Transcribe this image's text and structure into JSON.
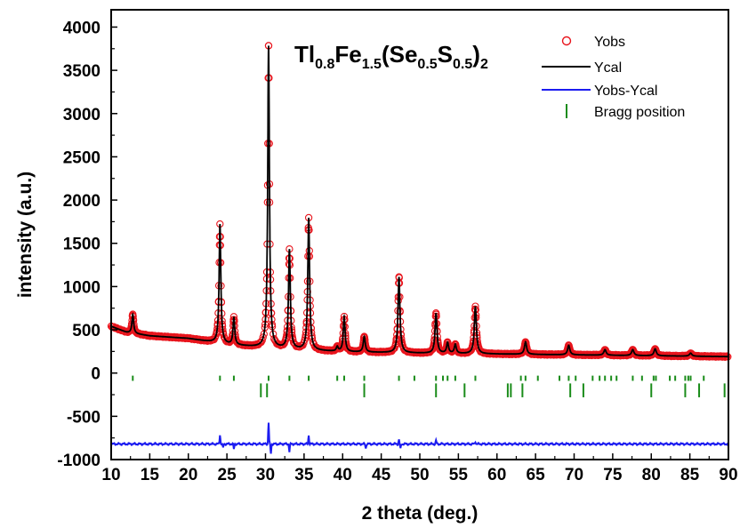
{
  "chart_data": {
    "type": "line",
    "title_parts": [
      "Tl",
      "0.8",
      "Fe",
      "1.5",
      "(Se",
      "0.5",
      "S",
      "0.5",
      ")",
      "2"
    ],
    "xlabel": "2 theta (deg.)",
    "ylabel": "intensity (a.u.)",
    "xlim": [
      10,
      90
    ],
    "ylim": [
      -1000,
      4200
    ],
    "xticks": [
      10,
      15,
      20,
      25,
      30,
      35,
      40,
      45,
      50,
      55,
      60,
      65,
      70,
      75,
      80,
      85,
      90
    ],
    "yticks": [
      -1000,
      -500,
      0,
      500,
      1000,
      1500,
      2000,
      2500,
      3000,
      3500,
      4000
    ],
    "grid": false,
    "legend_position": "top-right",
    "colors": {
      "yobs": "#e8141c",
      "ycal": "#000000",
      "diff": "#1c1cf0",
      "bragg": "#1a8c1a"
    },
    "legend": [
      {
        "label": "Yobs",
        "marker": "circle",
        "color": "#e8141c"
      },
      {
        "label": "Ycal",
        "marker": "line",
        "color": "#000000"
      },
      {
        "label": "Yobs-Ycal",
        "marker": "line",
        "color": "#1c1cf0"
      },
      {
        "label": "Bragg position",
        "marker": "tick",
        "color": "#1a8c1a"
      }
    ],
    "background_points": [
      [
        10,
        540
      ],
      [
        12,
        470
      ],
      [
        15,
        430
      ],
      [
        20,
        400
      ],
      [
        25,
        330
      ],
      [
        30,
        290
      ],
      [
        35,
        265
      ],
      [
        40,
        245
      ],
      [
        50,
        230
      ],
      [
        60,
        220
      ],
      [
        70,
        210
      ],
      [
        80,
        200
      ],
      [
        90,
        190
      ]
    ],
    "peaks": [
      {
        "x": 12.8,
        "height": 680,
        "width": 0.13
      },
      {
        "x": 24.1,
        "height": 1720,
        "width": 0.13
      },
      {
        "x": 25.9,
        "height": 640,
        "width": 0.13
      },
      {
        "x": 30.4,
        "height": 3780,
        "width": 0.13
      },
      {
        "x": 33.1,
        "height": 1420,
        "width": 0.14
      },
      {
        "x": 35.6,
        "height": 1790,
        "width": 0.14
      },
      {
        "x": 39.3,
        "height": 300,
        "width": 0.14
      },
      {
        "x": 40.2,
        "height": 650,
        "width": 0.14
      },
      {
        "x": 42.8,
        "height": 420,
        "width": 0.15
      },
      {
        "x": 47.3,
        "height": 1110,
        "width": 0.15
      },
      {
        "x": 52.1,
        "height": 690,
        "width": 0.15
      },
      {
        "x": 53.6,
        "height": 350,
        "width": 0.15
      },
      {
        "x": 54.6,
        "height": 330,
        "width": 0.15
      },
      {
        "x": 57.2,
        "height": 770,
        "width": 0.16
      },
      {
        "x": 63.7,
        "height": 360,
        "width": 0.17
      },
      {
        "x": 69.3,
        "height": 320,
        "width": 0.17
      },
      {
        "x": 74.0,
        "height": 270,
        "width": 0.18
      },
      {
        "x": 77.6,
        "height": 270,
        "width": 0.18
      },
      {
        "x": 80.5,
        "height": 280,
        "width": 0.18
      },
      {
        "x": 85.1,
        "height": 230,
        "width": 0.19
      }
    ],
    "bragg_row1_y": [
      -30,
      -90
    ],
    "bragg_row1_x": [
      12.8,
      24.1,
      25.9,
      30.4,
      33.1,
      35.6,
      39.3,
      40.2,
      42.8,
      47.3,
      49.3,
      52.1,
      53.0,
      53.6,
      54.6,
      57.2,
      63.1,
      63.7,
      65.3,
      68.1,
      69.3,
      70.2,
      72.4,
      73.3,
      74.0,
      74.8,
      75.5,
      77.6,
      78.8,
      80.3,
      80.6,
      82.4,
      83.1,
      84.4,
      84.8,
      85.1,
      86.8
    ],
    "bragg_row2_y": [
      -120,
      -280
    ],
    "bragg_row2_x": [
      29.4,
      30.2,
      42.8,
      52.1,
      55.8,
      61.4,
      61.8,
      63.3,
      69.5,
      71.2,
      80.0,
      84.4,
      86.2,
      89.5
    ],
    "diff_baseline": -820,
    "diff_spikes": [
      [
        24.1,
        110
      ],
      [
        24.5,
        -50
      ],
      [
        25.9,
        -60
      ],
      [
        30.4,
        250
      ],
      [
        30.7,
        -110
      ],
      [
        33.1,
        -90
      ],
      [
        35.6,
        100
      ],
      [
        43.0,
        -50
      ],
      [
        47.3,
        50
      ],
      [
        47.5,
        -60
      ],
      [
        52.1,
        40
      ],
      [
        57.2,
        30
      ]
    ]
  }
}
